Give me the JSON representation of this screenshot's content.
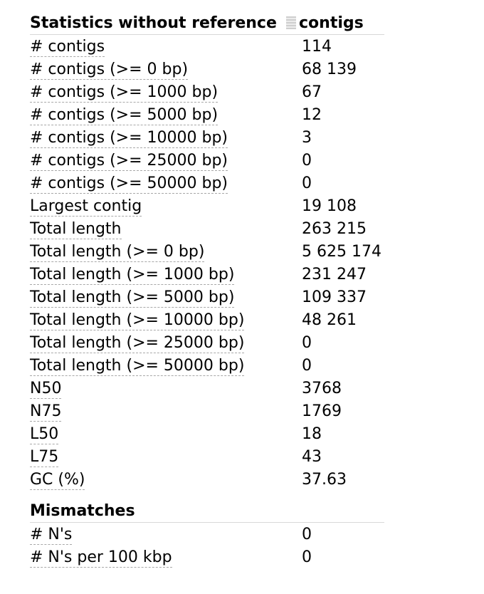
{
  "header": {
    "title": "Statistics without reference",
    "column": "contigs"
  },
  "rows": [
    {
      "label": "# contigs",
      "value": "114"
    },
    {
      "label": "# contigs (>= 0 bp)",
      "value": "68 139"
    },
    {
      "label": "# contigs (>= 1000 bp)",
      "value": "67"
    },
    {
      "label": "# contigs (>= 5000 bp)",
      "value": "12"
    },
    {
      "label": "# contigs (>= 10000 bp)",
      "value": "3"
    },
    {
      "label": "# contigs (>= 25000 bp)",
      "value": "0"
    },
    {
      "label": "# contigs (>= 50000 bp)",
      "value": "0"
    },
    {
      "label": "Largest contig",
      "value": "19 108"
    },
    {
      "label": "Total length",
      "value": "263 215"
    },
    {
      "label": "Total length (>= 0 bp)",
      "value": "5 625 174"
    },
    {
      "label": "Total length (>= 1000 bp)",
      "value": "231 247"
    },
    {
      "label": "Total length (>= 5000 bp)",
      "value": "109 337"
    },
    {
      "label": "Total length (>= 10000 bp)",
      "value": "48 261"
    },
    {
      "label": "Total length (>= 25000 bp)",
      "value": "0"
    },
    {
      "label": "Total length (>= 50000 bp)",
      "value": "0"
    },
    {
      "label": "N50",
      "value": "3768"
    },
    {
      "label": "N75",
      "value": "1769"
    },
    {
      "label": "L50",
      "value": "18"
    },
    {
      "label": "L75",
      "value": "43"
    },
    {
      "label": "GC (%)",
      "value": "37.63"
    }
  ],
  "mismatches": {
    "title": "Mismatches",
    "rows": [
      {
        "label": "# N's",
        "value": "0"
      },
      {
        "label": "# N's per 100 kbp",
        "value": "0"
      }
    ]
  }
}
